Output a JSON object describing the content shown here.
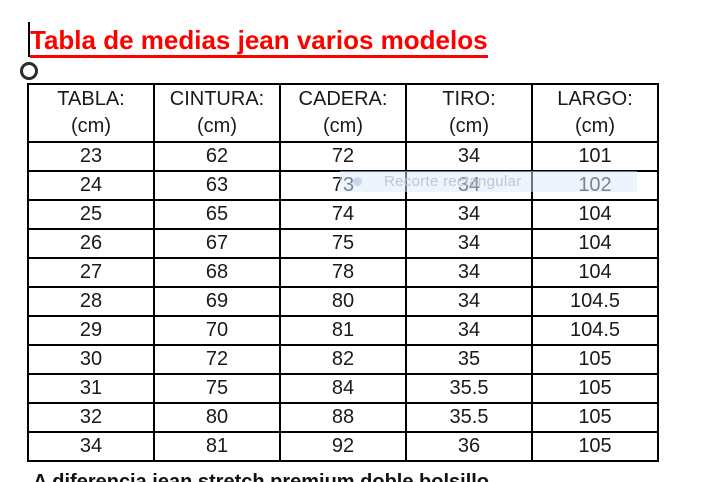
{
  "title": {
    "text": "Tabla de medias jean varios modelos",
    "color": "#ff0000"
  },
  "table": {
    "columns": [
      {
        "label": "TABLA:",
        "unit": "(cm)"
      },
      {
        "label": "CINTURA:",
        "unit": "(cm)"
      },
      {
        "label": "CADERA:",
        "unit": "(cm)"
      },
      {
        "label": "TIRO:",
        "unit": "(cm)"
      },
      {
        "label": "LARGO:",
        "unit": "(cm)"
      }
    ],
    "rows": [
      [
        "23",
        "62",
        "72",
        "34",
        "101"
      ],
      [
        "24",
        "63",
        "73",
        "34",
        "102"
      ],
      [
        "25",
        "65",
        "74",
        "34",
        "104"
      ],
      [
        "26",
        "67",
        "75",
        "34",
        "104"
      ],
      [
        "27",
        "68",
        "78",
        "34",
        "104"
      ],
      [
        "28",
        "69",
        "80",
        "34",
        "104.5"
      ],
      [
        "29",
        "70",
        "81",
        "34",
        "104.5"
      ],
      [
        "30",
        "72",
        "82",
        "35",
        "105"
      ],
      [
        "31",
        "75",
        "84",
        "35.5",
        "105"
      ],
      [
        "32",
        "80",
        "88",
        "35.5",
        "105"
      ],
      [
        "34",
        "81",
        "92",
        "36",
        "105"
      ]
    ]
  },
  "snip_tooltip": {
    "label": "Recorte rectangular",
    "band_color": "#dbe9f9",
    "text_color": "#bbc3d1"
  },
  "bottom_clipped_text": "A diferencia jean stretch premium doble bolsillo"
}
